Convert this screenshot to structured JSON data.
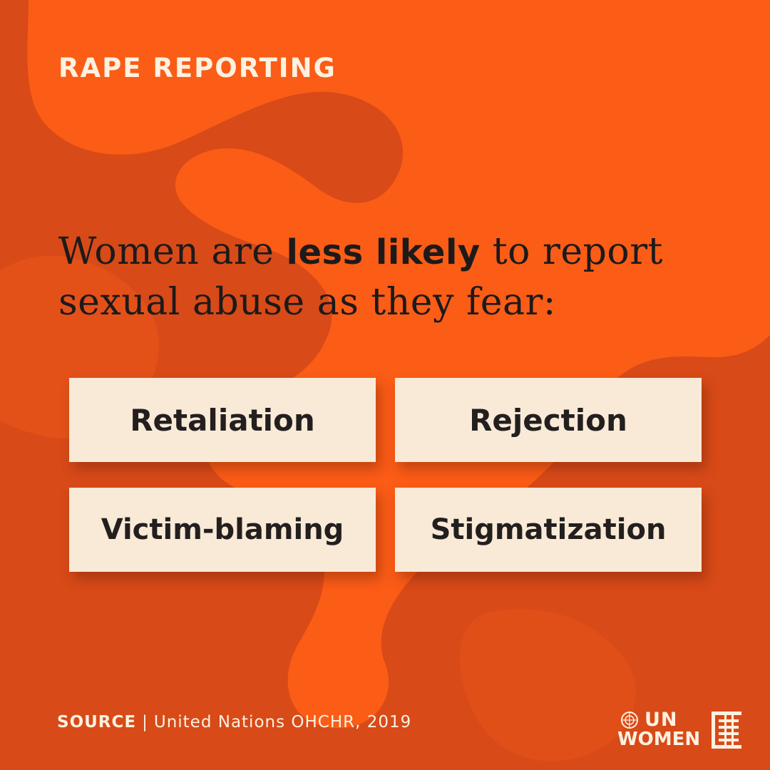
{
  "kicker": "RAPE REPORTING",
  "headline": {
    "part1": "Women are ",
    "emphasis": "less likely",
    "part2": " to report sexual abuse as they fear:"
  },
  "fears": [
    "Retaliation",
    "Rejection",
    "Victim-blaming",
    "Stigmatization"
  ],
  "source": {
    "label": "SOURCE",
    "separator": "|",
    "text": "United Nations OHCHR, 2019"
  },
  "logo": {
    "line1": "UN",
    "line2": "WOMEN"
  },
  "colors": {
    "background": "#d84a18",
    "blob": "#fb5c16",
    "box": "#f9ead7",
    "text_dark": "#1d1a1a",
    "text_light": "#fdf1e0"
  }
}
